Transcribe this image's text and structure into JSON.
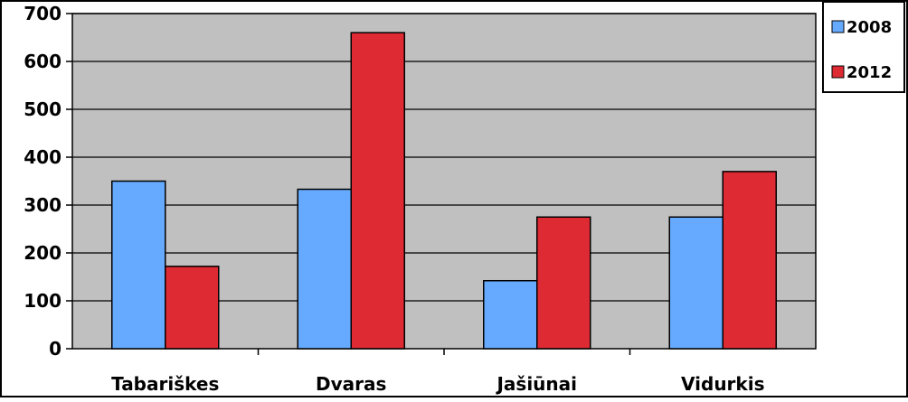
{
  "chart_data": {
    "type": "bar",
    "categories": [
      "Tabariškes",
      "Dvaras",
      "Jašiūnai",
      "Vidurkis"
    ],
    "series": [
      {
        "name": "2008",
        "values": [
          350,
          333,
          142,
          275
        ],
        "color": "#66aaff"
      },
      {
        "name": "2012",
        "values": [
          172,
          660,
          275,
          370
        ],
        "color": "#dd2a33"
      }
    ],
    "ylim": [
      0,
      700
    ],
    "yticks": [
      0,
      100,
      200,
      300,
      400,
      500,
      600,
      700
    ],
    "ytick_labels": [
      "0",
      "100",
      "200",
      "300",
      "400",
      "500",
      "600",
      "700"
    ],
    "grid": true,
    "legend_position": "top-right",
    "plot_background": "#c0c0c0",
    "title": "",
    "xlabel": "",
    "ylabel": ""
  }
}
